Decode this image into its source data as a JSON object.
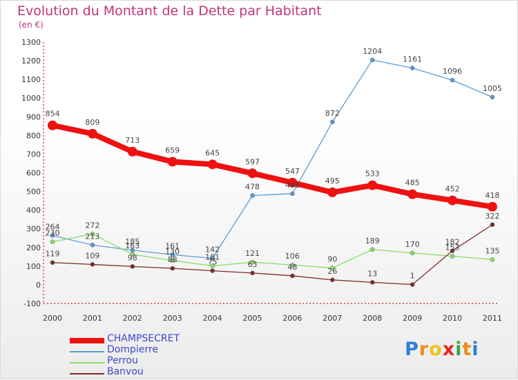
{
  "chart_data": {
    "type": "line",
    "title": "Evolution du Montant de la Dette par Habitant",
    "subtitle": "(en €)",
    "x": [
      "2000",
      "2001",
      "2002",
      "2003",
      "2004",
      "2005",
      "2006",
      "2007",
      "2008",
      "2009",
      "2010",
      "2011"
    ],
    "ylim": [
      -100,
      1300
    ],
    "yticks": [
      -100,
      0,
      100,
      200,
      300,
      400,
      500,
      600,
      700,
      800,
      900,
      1000,
      1100,
      1200,
      1300
    ],
    "grid": false,
    "legend_position": "bottom-left",
    "series": [
      {
        "name": "CHAMPSECRET",
        "color": "#ee1111",
        "values": [
          854,
          809,
          713,
          659,
          645,
          597,
          547,
          495,
          533,
          485,
          452,
          418
        ]
      },
      {
        "name": "Dompierre",
        "color": "#5b9bd5",
        "values": [
          264,
          213,
          185,
          161,
          142,
          478,
          488,
          872,
          1204,
          1161,
          1096,
          1005
        ]
      },
      {
        "name": "Perrou",
        "color": "#88dd66",
        "values": [
          230,
          272,
          163,
          130,
          101,
          121,
          106,
          90,
          189,
          170,
          153,
          135
        ]
      },
      {
        "name": "Banvou",
        "color": "#7a2a2a",
        "values": [
          119,
          109,
          98,
          88,
          75,
          63,
          48,
          26,
          13,
          1,
          182,
          322
        ]
      }
    ]
  },
  "logo": {
    "text": "Proxiti",
    "letters": [
      "P",
      "r",
      "o",
      "x",
      "i",
      "t",
      "i"
    ]
  }
}
